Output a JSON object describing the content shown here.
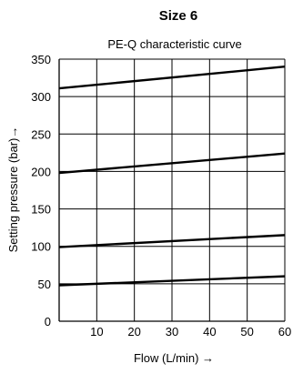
{
  "chart_data": {
    "type": "line",
    "title": "Size 6",
    "subtitle": "PE-Q characteristic curve",
    "xlabel": "Flow  (L/min) →",
    "ylabel": "Setting pressure  (bar)→",
    "xlim": [
      0,
      60
    ],
    "ylim": [
      0,
      350
    ],
    "x_ticks": [
      10,
      20,
      30,
      40,
      50,
      60
    ],
    "y_ticks": [
      0,
      50,
      100,
      150,
      200,
      250,
      300,
      350
    ],
    "grid": true,
    "x": [
      0,
      60
    ],
    "series": [
      {
        "values": [
          48,
          60
        ]
      },
      {
        "values": [
          99,
          115
        ]
      },
      {
        "values": [
          198,
          224
        ]
      },
      {
        "values": [
          311,
          340
        ]
      }
    ],
    "colors": {
      "line": "#000000",
      "grid": "#000000",
      "background": "#ffffff"
    }
  }
}
